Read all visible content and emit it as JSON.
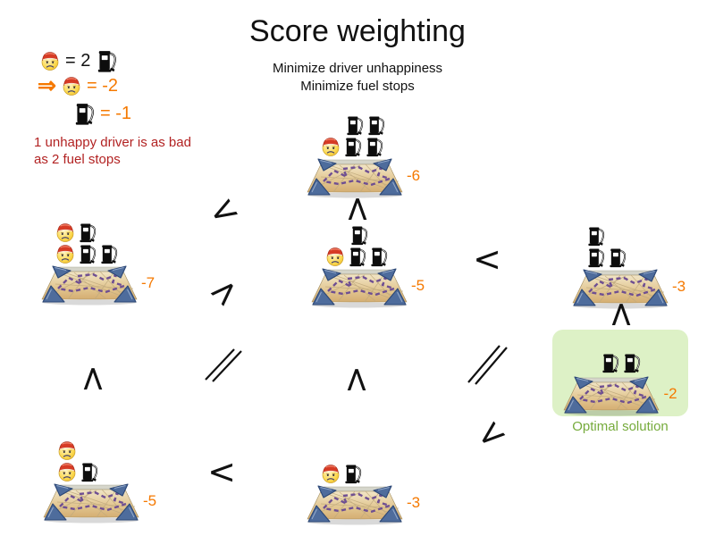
{
  "title": "Score weighting",
  "subtitle_line1": "Minimize driver unhappiness",
  "subtitle_line2": "Minimize fuel stops",
  "legend": {
    "arrow_icon": "⇒",
    "driver_equivalence": "= 2",
    "driver_penalty": "= -2",
    "fuel_penalty": "= -1",
    "note_line1": "1 unhappy driver is as bad",
    "note_line2": "as 2 fuel stops"
  },
  "solutions": [
    {
      "name": "top-center",
      "score": "-6",
      "icon_rows": [
        [
          "fuel",
          "fuel"
        ],
        [
          "driver",
          "fuel",
          "fuel"
        ]
      ]
    },
    {
      "name": "middle-left",
      "score": "-7",
      "icon_rows": [
        [
          "driver",
          "fuel"
        ],
        [
          "driver",
          "fuel",
          "fuel"
        ]
      ]
    },
    {
      "name": "middle-center",
      "score": "-5",
      "icon_rows": [
        [
          "fuel"
        ],
        [
          "driver",
          "fuel",
          "fuel"
        ]
      ]
    },
    {
      "name": "middle-right",
      "score": "-3",
      "icon_rows": [
        [
          "fuel"
        ],
        [
          "fuel",
          "fuel"
        ]
      ]
    },
    {
      "name": "optimal",
      "score": "-2",
      "icon_rows": [
        [
          "fuel",
          "fuel"
        ]
      ],
      "label": "Optimal solution"
    },
    {
      "name": "bottom-left",
      "score": "-5",
      "icon_rows": [
        [
          "driver"
        ],
        [
          "driver",
          "fuel"
        ]
      ]
    },
    {
      "name": "bottom-center",
      "score": "-3",
      "icon_rows": [
        [
          "driver",
          "fuel"
        ]
      ]
    }
  ],
  "comparators": [
    {
      "glyph": "<",
      "between": "middle-left vs top-center"
    },
    {
      "glyph": "<",
      "between": "top-center vs middle-center"
    },
    {
      "glyph": "<",
      "between": "middle-center vs middle-right"
    },
    {
      "glyph": "<",
      "between": "middle-left vs middle-center"
    },
    {
      "glyph": "<",
      "between": "bottom-left vs middle-left"
    },
    {
      "glyph": "<",
      "between": "bottom-center vs middle-center"
    },
    {
      "glyph": "<",
      "between": "middle-right vs optimal"
    },
    {
      "glyph": "<",
      "between": "bottom-center vs optimal"
    },
    {
      "glyph": "<",
      "between": "bottom-left vs bottom-center"
    }
  ],
  "colors": {
    "score_orange": "#f57900",
    "note_red": "#b22222",
    "optimal_green_bg": "#ddf1c6",
    "optimal_green_text": "#76ab3c"
  }
}
